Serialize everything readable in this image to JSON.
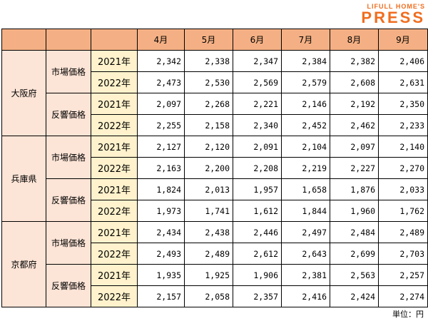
{
  "logo": {
    "line1": "LIFULL HOME'S",
    "line2": "PRESS",
    "color": "#f06d1e"
  },
  "columns": [
    "4月",
    "5月",
    "6月",
    "7月",
    "8月",
    "9月"
  ],
  "regions": [
    {
      "name": "大阪府",
      "types": [
        {
          "name": "市場価格",
          "rows": [
            {
              "year": "2021年",
              "values": [
                "2,342",
                "2,338",
                "2,347",
                "2,384",
                "2,382",
                "2,406"
              ]
            },
            {
              "year": "2022年",
              "values": [
                "2,473",
                "2,530",
                "2,569",
                "2,579",
                "2,608",
                "2,631"
              ]
            }
          ]
        },
        {
          "name": "反響価格",
          "rows": [
            {
              "year": "2021年",
              "values": [
                "2,097",
                "2,268",
                "2,221",
                "2,146",
                "2,192",
                "2,350"
              ]
            },
            {
              "year": "2022年",
              "values": [
                "2,255",
                "2,158",
                "2,340",
                "2,452",
                "2,462",
                "2,233"
              ]
            }
          ]
        }
      ]
    },
    {
      "name": "兵庫県",
      "types": [
        {
          "name": "市場価格",
          "rows": [
            {
              "year": "2021年",
              "values": [
                "2,127",
                "2,120",
                "2,091",
                "2,104",
                "2,097",
                "2,140"
              ]
            },
            {
              "year": "2022年",
              "values": [
                "2,163",
                "2,200",
                "2,208",
                "2,219",
                "2,227",
                "2,270"
              ]
            }
          ]
        },
        {
          "name": "反響価格",
          "rows": [
            {
              "year": "2021年",
              "values": [
                "1,824",
                "2,013",
                "1,957",
                "1,658",
                "1,876",
                "2,033"
              ]
            },
            {
              "year": "2022年",
              "values": [
                "1,973",
                "1,741",
                "1,612",
                "1,844",
                "1,960",
                "1,762"
              ]
            }
          ]
        }
      ]
    },
    {
      "name": "京都府",
      "types": [
        {
          "name": "市場価格",
          "rows": [
            {
              "year": "2021年",
              "values": [
                "2,434",
                "2,438",
                "2,446",
                "2,497",
                "2,484",
                "2,489"
              ]
            },
            {
              "year": "2022年",
              "values": [
                "2,493",
                "2,489",
                "2,612",
                "2,643",
                "2,699",
                "2,703"
              ]
            }
          ]
        },
        {
          "name": "反響価格",
          "rows": [
            {
              "year": "2021年",
              "values": [
                "1,935",
                "1,925",
                "1,906",
                "2,381",
                "2,563",
                "2,257"
              ]
            },
            {
              "year": "2022年",
              "values": [
                "2,157",
                "2,058",
                "2,357",
                "2,416",
                "2,424",
                "2,274"
              ]
            }
          ]
        }
      ]
    }
  ],
  "unit": "単位：円",
  "colors": {
    "header": "#f4b084",
    "label": "#fce4d6",
    "year": "#fff2cc"
  }
}
